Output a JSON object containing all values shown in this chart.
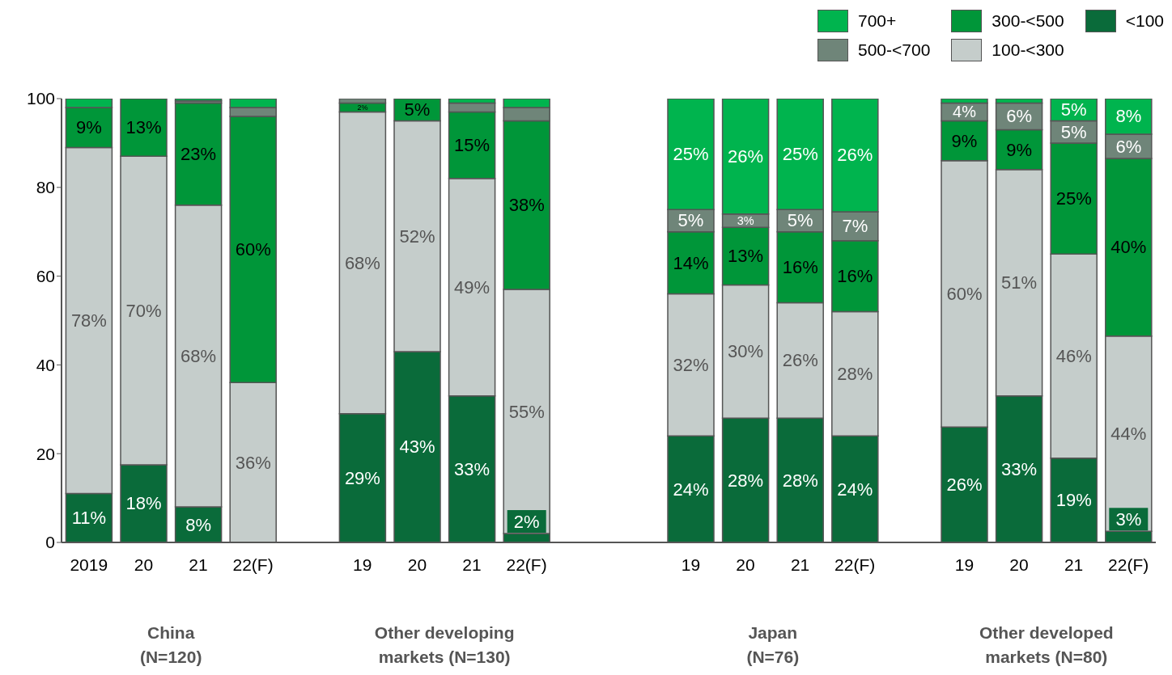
{
  "chart_data": {
    "type": "bar",
    "stacked": true,
    "categories": [
      "2019",
      "20",
      "21",
      "22(F)",
      null,
      "19",
      "20",
      "21",
      "22(F)",
      null,
      null,
      "19",
      "20",
      "21",
      "22(F)",
      null,
      "19",
      "20",
      "21",
      "22(F)"
    ],
    "series": [
      {
        "name": "<100",
        "color": "#0a6b3a",
        "values": [
          11,
          17.5,
          8,
          0,
          null,
          29,
          43,
          33,
          2,
          null,
          null,
          24,
          28,
          28,
          24,
          null,
          26,
          33,
          19,
          2.5
        ],
        "value_labels": [
          "11%",
          "18%",
          "8%",
          null,
          null,
          "29%",
          "43%",
          "33%",
          "2%",
          null,
          null,
          "24%",
          "28%",
          "28%",
          "24%",
          null,
          "26%",
          "33%",
          "19%",
          "3%"
        ]
      },
      {
        "name": "100-<300",
        "color": "#c5cdcb",
        "values": [
          78,
          69.5,
          68,
          36,
          null,
          68,
          52,
          49,
          55,
          null,
          null,
          32,
          30,
          26,
          28,
          null,
          60,
          51,
          46,
          44
        ],
        "value_labels": [
          "78%",
          "70%",
          "68%",
          "36%",
          null,
          "68%",
          "52%",
          "49%",
          "55%",
          null,
          null,
          "32%",
          "30%",
          "26%",
          "28%",
          null,
          "60%",
          "51%",
          "46%",
          "44%"
        ]
      },
      {
        "name": "300-<500",
        "color": "#009639",
        "values": [
          9,
          13,
          23,
          60,
          null,
          2,
          5,
          15,
          38,
          null,
          null,
          14,
          13,
          16,
          16,
          null,
          9,
          9,
          25,
          40
        ],
        "value_labels": [
          "9%",
          "13%",
          "23%",
          "60%",
          null,
          "2%",
          "5%",
          "15%",
          "38%",
          null,
          null,
          "14%",
          "13%",
          "16%",
          "16%",
          null,
          "9%",
          "9%",
          "25%",
          "40%"
        ]
      },
      {
        "name": "500-<700",
        "color": "#6f8579",
        "values": [
          0,
          0,
          0.5,
          2,
          null,
          1,
          0,
          2,
          3,
          null,
          null,
          5,
          3,
          5,
          6.5,
          null,
          4,
          6,
          5,
          5.5
        ],
        "value_labels": [
          null,
          null,
          null,
          null,
          null,
          null,
          null,
          null,
          null,
          null,
          null,
          "5%",
          "3%",
          "5%",
          "7%",
          null,
          "4%",
          "6%",
          "5%",
          "6%"
        ]
      },
      {
        "name": "700+",
        "color": "#00b44e",
        "values": [
          2,
          0,
          0.5,
          2,
          null,
          0,
          0,
          1,
          2,
          null,
          null,
          25,
          26,
          25,
          25.5,
          null,
          1,
          1,
          5,
          8
        ],
        "value_labels": [
          null,
          null,
          null,
          null,
          null,
          null,
          null,
          null,
          null,
          null,
          null,
          "25%",
          "26%",
          "25%",
          "26%",
          null,
          null,
          null,
          "5%",
          "8%"
        ]
      }
    ],
    "ylim": [
      0,
      100
    ],
    "yticks": [
      0,
      20,
      40,
      60,
      80,
      100
    ],
    "grid": false,
    "legend": "top right",
    "annotations": [
      "China\n(N=120)",
      "Other developing\nmarkets (N=130)",
      "Japan\n(N=76)",
      "Other developed\nmarkets (N=80)"
    ]
  }
}
